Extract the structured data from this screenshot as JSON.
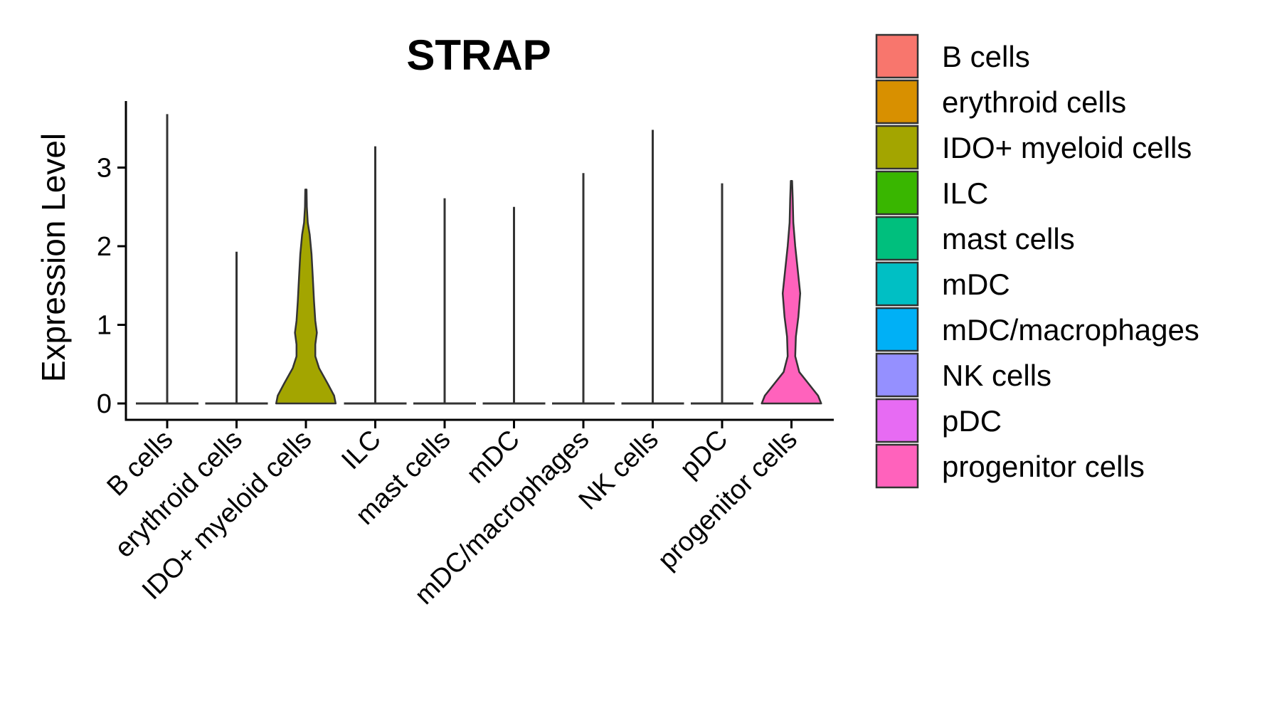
{
  "chart_data": {
    "type": "violin",
    "title": "STRAP",
    "xlabel": "",
    "ylabel": "Expression Level",
    "ylim": [
      -0.2,
      3.9
    ],
    "yticks": [
      0,
      1,
      2,
      3
    ],
    "grid": false,
    "legend_position": "right",
    "categories": [
      "B cells",
      "erythroid cells",
      "IDO+ myeloid cells",
      "ILC",
      "mast cells",
      "mDC",
      "mDC/macrophages",
      "NK cells",
      "pDC",
      "progenitor cells"
    ],
    "colors": [
      "#F8766D",
      "#D89000",
      "#A3A500",
      "#39B600",
      "#00BF7D",
      "#00BFC4",
      "#00B0F6",
      "#9590FF",
      "#E76BF3",
      "#FF62BC"
    ],
    "max_values": [
      3.68,
      1.93,
      2.72,
      3.27,
      2.61,
      2.5,
      2.93,
      3.48,
      2.8,
      2.83
    ],
    "densities": [
      null,
      null,
      [
        [
          0,
          0.95
        ],
        [
          0.1,
          0.9
        ],
        [
          0.25,
          0.7
        ],
        [
          0.45,
          0.42
        ],
        [
          0.6,
          0.3
        ],
        [
          0.75,
          0.3
        ],
        [
          0.9,
          0.35
        ],
        [
          1.05,
          0.3
        ],
        [
          1.3,
          0.26
        ],
        [
          1.6,
          0.22
        ],
        [
          1.9,
          0.18
        ],
        [
          2.15,
          0.12
        ],
        [
          2.3,
          0.06
        ],
        [
          2.5,
          0.03
        ],
        [
          2.72,
          0.02
        ]
      ],
      null,
      null,
      null,
      null,
      null,
      null,
      [
        [
          0,
          0.95
        ],
        [
          0.1,
          0.85
        ],
        [
          0.25,
          0.55
        ],
        [
          0.4,
          0.25
        ],
        [
          0.6,
          0.12
        ],
        [
          0.85,
          0.14
        ],
        [
          1.1,
          0.22
        ],
        [
          1.4,
          0.28
        ],
        [
          1.7,
          0.2
        ],
        [
          2.0,
          0.12
        ],
        [
          2.3,
          0.06
        ],
        [
          2.6,
          0.04
        ],
        [
          2.83,
          0.02
        ]
      ]
    ]
  }
}
